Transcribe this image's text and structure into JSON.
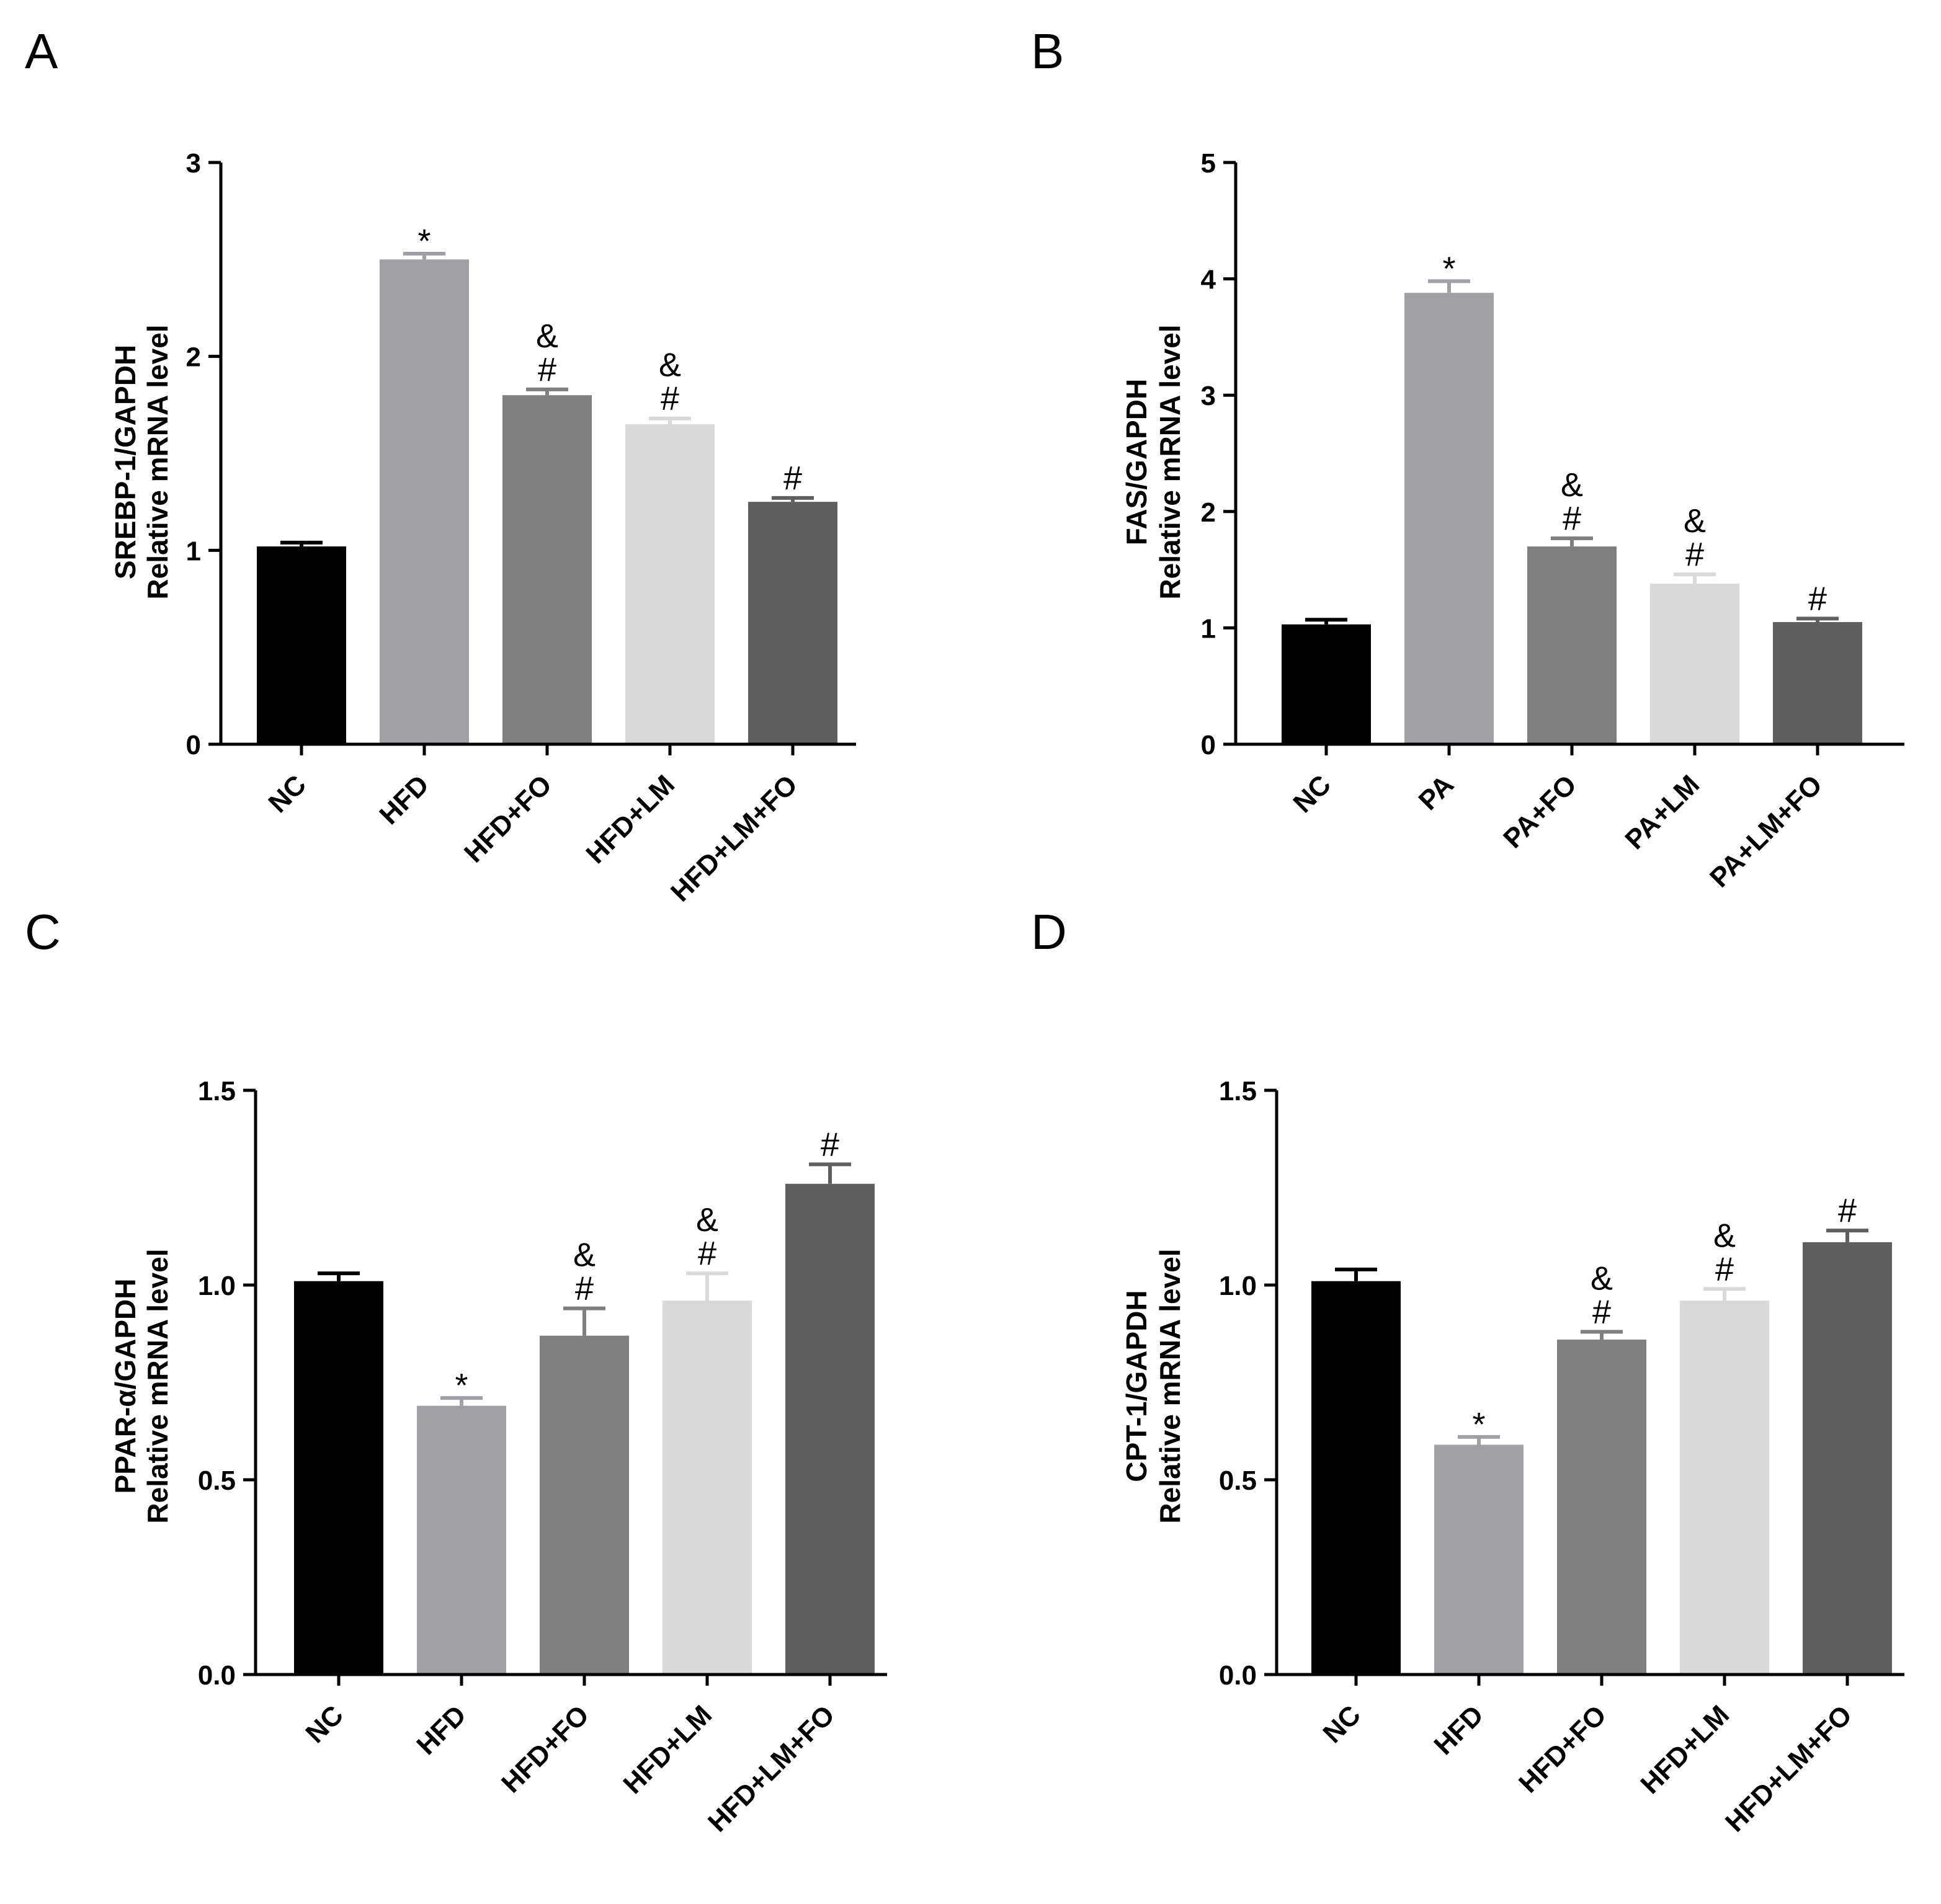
{
  "chart_data": [
    {
      "panel_label": "A",
      "type": "bar",
      "ylabel_line1": "SREBP-1/GAPDH",
      "ylabel_line2": "Relative mRNA level",
      "ylim": [
        0,
        3
      ],
      "yticks": [
        0,
        1,
        2,
        3
      ],
      "ytick_labels": [
        "0",
        "1",
        "2",
        "3"
      ],
      "categories": [
        "NC",
        "HFD",
        "HFD+FO",
        "HFD+LM",
        "HFD+LM+FO"
      ],
      "values": [
        1.02,
        2.5,
        1.8,
        1.65,
        1.25
      ],
      "errors": [
        0.02,
        0.03,
        0.03,
        0.03,
        0.02
      ],
      "colors": [
        "#000000",
        "#a0a0a6",
        "#7f7f7f",
        "#d9d9d9",
        "#5f5f5f"
      ],
      "annotations": [
        [],
        [
          "*"
        ],
        [
          "#",
          "&"
        ],
        [
          "#",
          "&"
        ],
        [
          "#"
        ]
      ]
    },
    {
      "panel_label": "B",
      "type": "bar",
      "ylabel_line1": "FAS/GAPDH",
      "ylabel_line2": "Relative mRNA level",
      "ylim": [
        0,
        5
      ],
      "yticks": [
        0,
        1,
        2,
        3,
        4,
        5
      ],
      "ytick_labels": [
        "0",
        "1",
        "2",
        "3",
        "4",
        "5"
      ],
      "categories": [
        "NC",
        "PA",
        "PA+FO",
        "PA+LM",
        "PA+LM+FO"
      ],
      "values": [
        1.03,
        3.88,
        1.7,
        1.38,
        1.05
      ],
      "errors": [
        0.04,
        0.1,
        0.07,
        0.08,
        0.03
      ],
      "colors": [
        "#000000",
        "#a0a0a6",
        "#7f7f7f",
        "#d9d9d9",
        "#5f5f5f"
      ],
      "annotations": [
        [],
        [
          "*"
        ],
        [
          "#",
          "&"
        ],
        [
          "#",
          "&"
        ],
        [
          "#"
        ]
      ]
    },
    {
      "panel_label": "C",
      "type": "bar",
      "ylabel_line1": "PPAR-α/GAPDH",
      "ylabel_line2": "Relative mRNA level",
      "ylim": [
        0,
        1.5
      ],
      "yticks": [
        0,
        0.5,
        1.0,
        1.5
      ],
      "ytick_labels": [
        "0.0",
        "0.5",
        "1.0",
        "1.5"
      ],
      "categories": [
        "NC",
        "HFD",
        "HFD+FO",
        "HFD+LM",
        "HFD+LM+FO"
      ],
      "values": [
        1.01,
        0.69,
        0.87,
        0.96,
        1.26
      ],
      "errors": [
        0.02,
        0.02,
        0.07,
        0.07,
        0.05
      ],
      "colors": [
        "#000000",
        "#a0a0a6",
        "#7f7f7f",
        "#d9d9d9",
        "#5f5f5f"
      ],
      "annotations": [
        [],
        [
          "*"
        ],
        [
          "#",
          "&"
        ],
        [
          "#",
          "&"
        ],
        [
          "#"
        ]
      ]
    },
    {
      "panel_label": "D",
      "type": "bar",
      "ylabel_line1": "CPT-1/GAPDH",
      "ylabel_line2": "Relative mRNA level",
      "ylim": [
        0,
        1.5
      ],
      "yticks": [
        0,
        0.5,
        1.0,
        1.5
      ],
      "ytick_labels": [
        "0.0",
        "0.5",
        "1.0",
        "1.5"
      ],
      "categories": [
        "NC",
        "HFD",
        "HFD+FO",
        "HFD+LM",
        "HFD+LM+FO"
      ],
      "values": [
        1.01,
        0.59,
        0.86,
        0.96,
        1.11
      ],
      "errors": [
        0.03,
        0.02,
        0.02,
        0.03,
        0.03
      ],
      "colors": [
        "#000000",
        "#a0a0a6",
        "#7f7f7f",
        "#d9d9d9",
        "#5f5f5f"
      ],
      "annotations": [
        [],
        [
          "*"
        ],
        [
          "#",
          "&"
        ],
        [
          "#",
          "&"
        ],
        [
          "#"
        ]
      ]
    }
  ]
}
